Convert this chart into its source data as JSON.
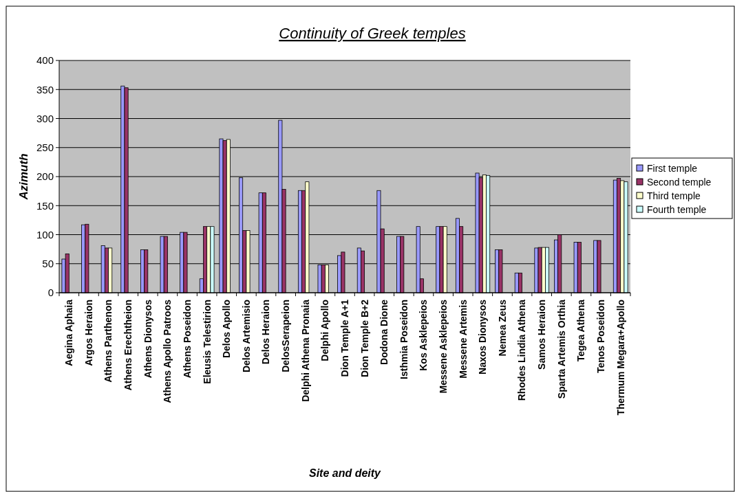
{
  "chart_data": {
    "type": "bar",
    "title": "Continuity of Greek temples",
    "xlabel": "Site and deity",
    "ylabel": "Azimuth",
    "categories": [
      "Aegina Aphaia",
      "Argos Heraion",
      "Athens Parthenon",
      "Athens Erechtheion",
      "Athens Dionysos",
      "Athens Apollo Patroos",
      "Athens Poseidon",
      "Eleusis Telestirion",
      "Delos Apollo",
      "Delos Artemisio",
      "Delos Heraion",
      "DelosSerapeion",
      "Delphi Athena Pronaia",
      "Delphi Apollo",
      "Dion Temple A+1",
      "Dion Temple B+2",
      "Dodona Dione",
      "Isthmia Poseidon",
      "Kos Asklepeios",
      "Messene Asklepeios",
      "Messene Artemis",
      "Naxos Dionysos",
      "Nemea Zeus",
      "Rhodes Lindia Athena",
      "Samos Heraion",
      "Sparta Artemis Orthia",
      "Tegea Athena",
      "Tenos Poseidon",
      "Thermum Megara+Apollo"
    ],
    "series": [
      {
        "name": "First temple",
        "color": "#9999ff",
        "values": [
          58,
          117,
          81,
          356,
          74,
          97,
          104,
          24,
          265,
          198,
          172,
          297,
          176,
          48,
          64,
          77,
          176,
          97,
          114,
          114,
          128,
          206,
          74,
          34,
          77,
          91,
          87,
          90,
          194
        ]
      },
      {
        "name": "Second temple",
        "color": "#993366",
        "values": [
          67,
          118,
          77,
          353,
          74,
          97,
          104,
          114,
          262,
          107,
          172,
          178,
          176,
          48,
          70,
          72,
          110,
          97,
          24,
          114,
          114,
          198,
          74,
          34,
          78,
          100,
          87,
          90,
          197
        ]
      },
      {
        "name": "Third temple",
        "color": "#ffffcc",
        "values": [
          null,
          null,
          77,
          null,
          null,
          null,
          null,
          114,
          264,
          107,
          null,
          null,
          191,
          48,
          null,
          null,
          null,
          null,
          null,
          114,
          null,
          203,
          null,
          null,
          78,
          null,
          null,
          null,
          193
        ]
      },
      {
        "name": "Fourth temple",
        "color": "#ccffff",
        "values": [
          null,
          null,
          null,
          null,
          null,
          null,
          null,
          114,
          null,
          null,
          null,
          null,
          null,
          null,
          null,
          null,
          null,
          null,
          null,
          null,
          null,
          202,
          null,
          null,
          78,
          null,
          null,
          null,
          191
        ]
      }
    ],
    "ylim": [
      0,
      400
    ],
    "yticks": [
      0,
      50,
      100,
      150,
      200,
      250,
      300,
      350,
      400
    ],
    "grid": "y",
    "legend": "right"
  }
}
